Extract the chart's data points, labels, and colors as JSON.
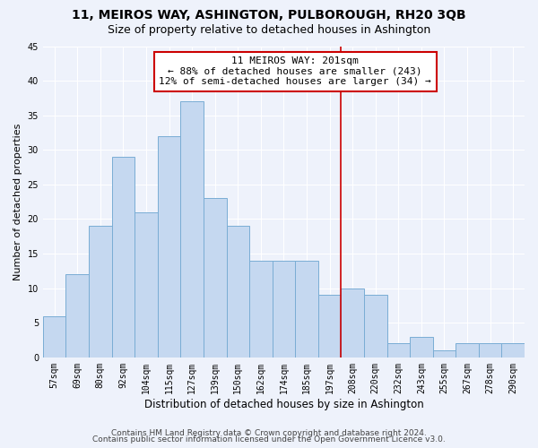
{
  "title": "11, MEIROS WAY, ASHINGTON, PULBOROUGH, RH20 3QB",
  "subtitle": "Size of property relative to detached houses in Ashington",
  "xlabel": "Distribution of detached houses by size in Ashington",
  "ylabel": "Number of detached properties",
  "bar_labels": [
    "57sqm",
    "69sqm",
    "80sqm",
    "92sqm",
    "104sqm",
    "115sqm",
    "127sqm",
    "139sqm",
    "150sqm",
    "162sqm",
    "174sqm",
    "185sqm",
    "197sqm",
    "208sqm",
    "220sqm",
    "232sqm",
    "243sqm",
    "255sqm",
    "267sqm",
    "278sqm",
    "290sqm"
  ],
  "bar_values": [
    6,
    12,
    19,
    29,
    21,
    32,
    37,
    23,
    19,
    14,
    14,
    14,
    9,
    10,
    9,
    2,
    3,
    1,
    2,
    2,
    2
  ],
  "bar_color": "#c5d8f0",
  "bar_edge_color": "#7aadd4",
  "vline_index": 12,
  "vline_color": "#cc0000",
  "annotation_line1": "11 MEIROS WAY: 201sqm",
  "annotation_line2": "← 88% of detached houses are smaller (243)",
  "annotation_line3": "12% of semi-detached houses are larger (34) →",
  "annotation_box_color": "#cc0000",
  "ylim": [
    0,
    45
  ],
  "yticks": [
    0,
    5,
    10,
    15,
    20,
    25,
    30,
    35,
    40,
    45
  ],
  "footer_line1": "Contains HM Land Registry data © Crown copyright and database right 2024.",
  "footer_line2": "Contains public sector information licensed under the Open Government Licence v3.0.",
  "bg_color": "#eef2fb",
  "grid_color": "#ffffff",
  "title_fontsize": 10,
  "subtitle_fontsize": 9,
  "annotation_fontsize": 8,
  "footer_fontsize": 6.5,
  "ylabel_fontsize": 8,
  "xlabel_fontsize": 8.5,
  "tick_fontsize": 7
}
